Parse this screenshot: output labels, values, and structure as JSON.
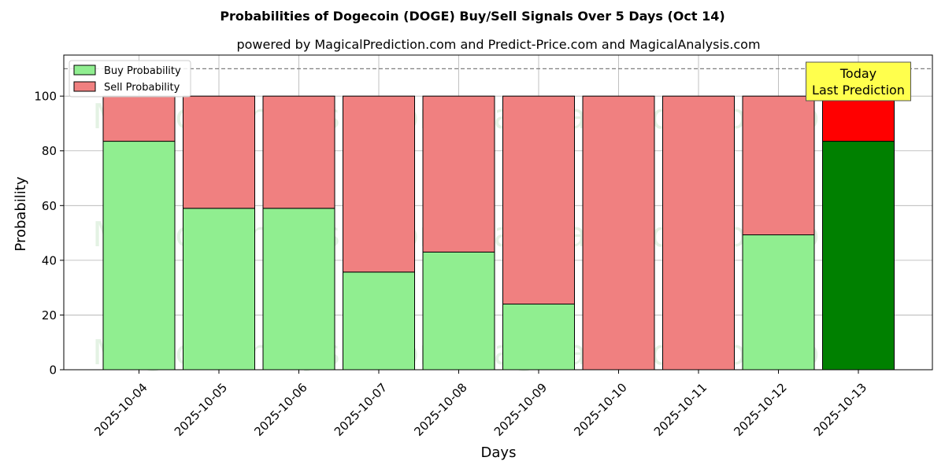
{
  "chart_data": {
    "type": "bar",
    "stacked": true,
    "title": "Probabilities of Dogecoin (DOGE) Buy/Sell Signals Over 5 Days (Oct 14)",
    "subtitle": "powered by MagicalPrediction.com and Predict-Price.com and MagicalAnalysis.com",
    "xlabel": "Days",
    "ylabel": "Probability",
    "ylim": [
      0,
      115
    ],
    "yticks": [
      0,
      20,
      40,
      60,
      80,
      100
    ],
    "grid": true,
    "legend_position": "top-left",
    "threshold_line": 110,
    "categories": [
      "2025-10-04",
      "2025-10-05",
      "2025-10-06",
      "2025-10-07",
      "2025-10-08",
      "2025-10-09",
      "2025-10-10",
      "2025-10-11",
      "2025-10-12",
      "2025-10-13"
    ],
    "series": [
      {
        "name": "Buy Probability",
        "color": "#90ee90",
        "values": [
          83.5,
          59,
          59,
          35.7,
          43,
          24,
          0,
          0,
          49.3,
          83.5
        ]
      },
      {
        "name": "Sell Probability",
        "color": "#f08080",
        "values": [
          16.5,
          41,
          41,
          64.3,
          57,
          76,
          100,
          100,
          50.7,
          16.5
        ]
      }
    ],
    "highlight": {
      "index": 9,
      "buy_color": "#008000",
      "sell_color": "#ff0000",
      "label_line1": "Today",
      "label_line2": "Last Prediction",
      "box_color": "#ffff4d"
    },
    "watermarks": [
      "MagicalAnalysis.com",
      "MagicalPrediction.com"
    ]
  }
}
